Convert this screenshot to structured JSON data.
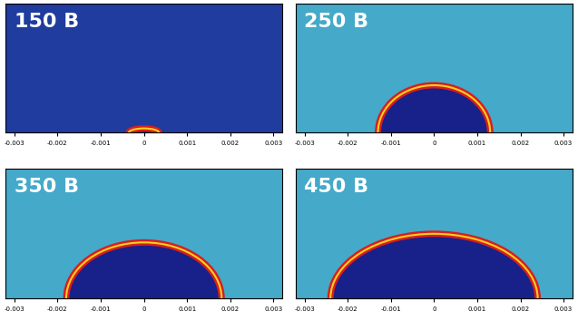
{
  "chart_data": [
    {
      "type": "field",
      "title": "150 В",
      "color": "#1f3c9e",
      "front_radius": 0.00035,
      "front_height": 0.0001,
      "xlim": [
        -0.0032,
        0.0032
      ],
      "ylim": [
        0,
        0.003
      ],
      "xticks": [
        -0.003,
        -0.002,
        -0.001,
        0,
        0.001,
        0.002,
        0.003
      ],
      "tick_labels": "x"
    },
    {
      "type": "field",
      "title": "250 В",
      "color": "#45a9c9",
      "front_radius": 0.0013,
      "front_height": 0.0011,
      "xlim": [
        -0.0032,
        0.0032
      ],
      "ylim": [
        0,
        0.003
      ],
      "xticks": [
        -0.003,
        -0.002,
        -0.001,
        0,
        0.001,
        0.002,
        0.003
      ],
      "tick_labels": "x"
    },
    {
      "type": "field",
      "title": "350 В",
      "color": "#45a9c9",
      "front_radius": 0.0018,
      "front_height": 0.0013,
      "xlim": [
        -0.0032,
        0.0032
      ],
      "ylim": [
        0,
        0.003
      ],
      "xticks": [
        -0.003,
        -0.002,
        -0.001,
        0,
        0.001,
        0.002,
        0.003
      ],
      "tick_labels": "x"
    },
    {
      "type": "field",
      "title": "450 В",
      "color": "#45a9c9",
      "front_radius": 0.0024,
      "front_height": 0.0015,
      "xlim": [
        -0.0032,
        0.0032
      ],
      "ylim": [
        0,
        0.003
      ],
      "xticks": [
        -0.003,
        -0.002,
        -0.001,
        0,
        0.001,
        0.002,
        0.003
      ],
      "tick_labels": "x"
    }
  ]
}
